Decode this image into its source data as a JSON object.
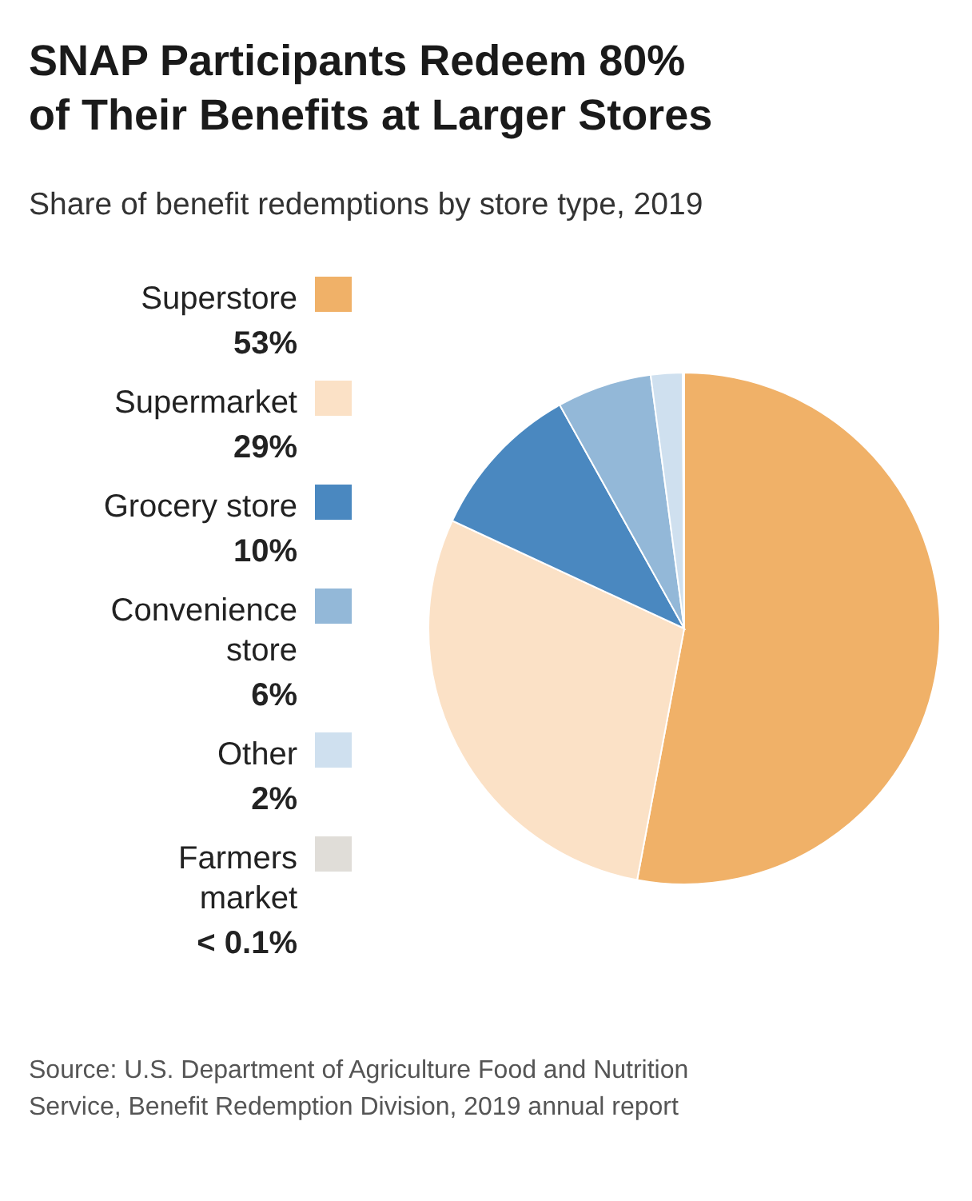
{
  "chart_data": {
    "type": "pie",
    "title": "SNAP Participants Redeem 80%\nof Their Benefits at Larger Stores",
    "subtitle": "Share of benefit redemptions by store type, 2019",
    "categories": [
      "Superstore",
      "Supermarket",
      "Grocery store",
      "Convenience\nstore",
      "Other",
      "Farmers\nmarket"
    ],
    "values": [
      53,
      29,
      10,
      6,
      2,
      0.1
    ],
    "value_labels": [
      "53%",
      "29%",
      "10%",
      "6%",
      "2%",
      "< 0.1%"
    ],
    "colors": [
      "#f0b168",
      "#fbe1c6",
      "#4a88c0",
      "#93b8d8",
      "#cfe0ef",
      "#e0ddd8"
    ],
    "legend": "left",
    "annotations": [
      "Source: U.S. Department of Agriculture Food and Nutrition\nService, Benefit Redemption Division, 2019 annual report"
    ]
  }
}
